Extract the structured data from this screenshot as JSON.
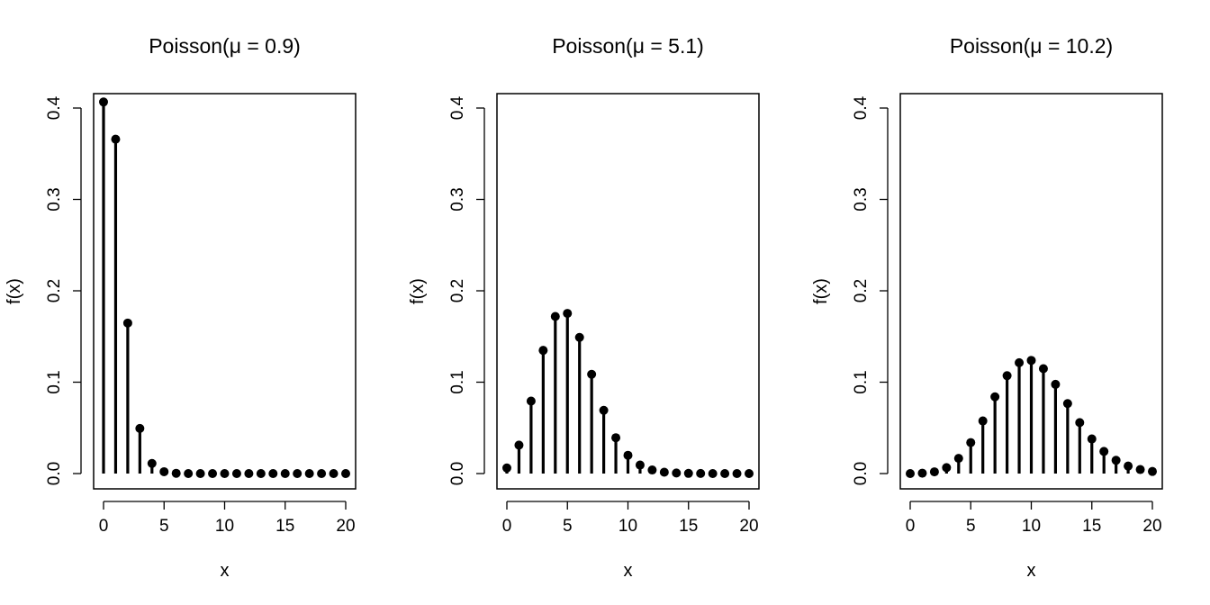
{
  "chart_data": [
    {
      "type": "bar",
      "style": "lollipop",
      "title": "Poisson(μ = 0.9)",
      "xlabel": "x",
      "ylabel": "f(x)",
      "xlim": [
        0,
        20
      ],
      "ylim": [
        0,
        0.42
      ],
      "xticks": [
        "0",
        "5",
        "10",
        "15",
        "20"
      ],
      "yticks": [
        "0.0",
        "0.1",
        "0.2",
        "0.3",
        "0.4"
      ],
      "grid": false,
      "x": [
        0,
        1,
        2,
        3,
        4,
        5,
        6,
        7,
        8,
        9,
        10,
        11,
        12,
        13,
        14,
        15,
        16,
        17,
        18,
        19,
        20
      ],
      "values": [
        0.4066,
        0.3659,
        0.1647,
        0.0494,
        0.0111,
        0.002,
        0.0003,
        0.0,
        0.0,
        0.0,
        0.0,
        0.0,
        0.0,
        0.0,
        0.0,
        0.0,
        0.0,
        0.0,
        0.0,
        0.0,
        0.0
      ]
    },
    {
      "type": "bar",
      "style": "lollipop",
      "title": "Poisson(μ = 5.1)",
      "xlabel": "x",
      "ylabel": "f(x)",
      "xlim": [
        0,
        20
      ],
      "ylim": [
        0,
        0.42
      ],
      "xticks": [
        "0",
        "5",
        "10",
        "15",
        "20"
      ],
      "yticks": [
        "0.0",
        "0.1",
        "0.2",
        "0.3",
        "0.4"
      ],
      "grid": false,
      "x": [
        0,
        1,
        2,
        3,
        4,
        5,
        6,
        7,
        8,
        9,
        10,
        11,
        12,
        13,
        14,
        15,
        16,
        17,
        18,
        19,
        20
      ],
      "values": [
        0.0061,
        0.0311,
        0.0793,
        0.1348,
        0.1719,
        0.1753,
        0.149,
        0.1086,
        0.0692,
        0.0392,
        0.02,
        0.0093,
        0.0039,
        0.0015,
        0.0006,
        0.0002,
        0.0001,
        0.0,
        0.0,
        0.0,
        0.0
      ]
    },
    {
      "type": "bar",
      "style": "lollipop",
      "title": "Poisson(μ = 10.2)",
      "xlabel": "x",
      "ylabel": "f(x)",
      "xlim": [
        0,
        20
      ],
      "ylim": [
        0,
        0.42
      ],
      "xticks": [
        "0",
        "5",
        "10",
        "15",
        "20"
      ],
      "yticks": [
        "0.0",
        "0.1",
        "0.2",
        "0.3",
        "0.4"
      ],
      "grid": false,
      "x": [
        0,
        1,
        2,
        3,
        4,
        5,
        6,
        7,
        8,
        9,
        10,
        11,
        12,
        13,
        14,
        15,
        16,
        17,
        18,
        19,
        20
      ],
      "values": [
        0.0,
        0.0004,
        0.0019,
        0.0065,
        0.0166,
        0.0339,
        0.0576,
        0.084,
        0.1071,
        0.1213,
        0.1238,
        0.1148,
        0.0976,
        0.0766,
        0.0558,
        0.0379,
        0.0242,
        0.0145,
        0.0082,
        0.0044,
        0.0023
      ]
    }
  ]
}
